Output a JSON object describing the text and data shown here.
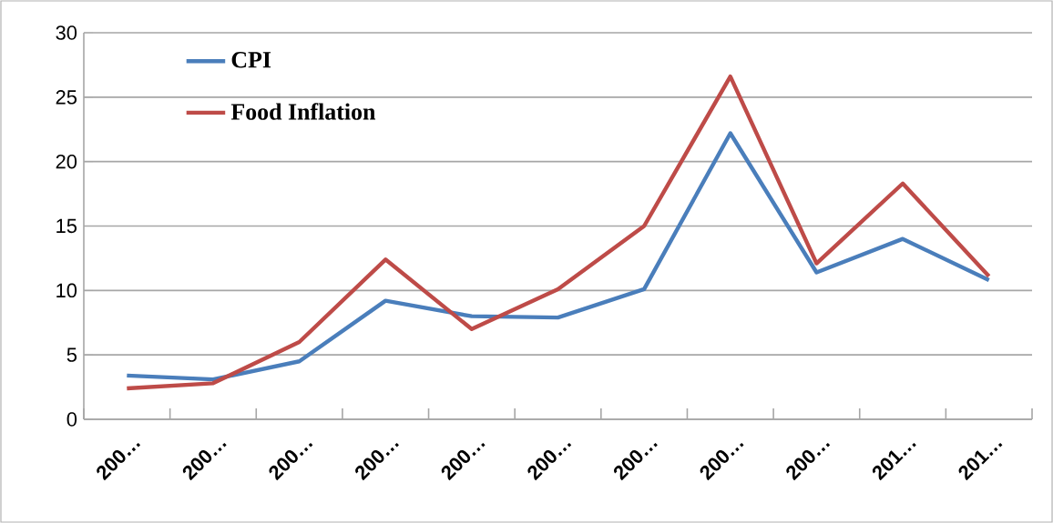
{
  "chart_data": {
    "type": "line",
    "categories": [
      "200…",
      "200…",
      "200…",
      "200…",
      "200…",
      "200…",
      "200…",
      "200…",
      "200…",
      "201…",
      "201…"
    ],
    "series": [
      {
        "name": "CPI",
        "color": "#4a7ebb",
        "values": [
          3.4,
          3.1,
          4.5,
          9.2,
          8.0,
          7.9,
          10.1,
          22.2,
          11.4,
          14.0,
          10.8
        ]
      },
      {
        "name": "Food Inflation",
        "color": "#be4b48",
        "values": [
          2.4,
          2.8,
          6.0,
          12.4,
          7.0,
          10.1,
          15.0,
          26.6,
          12.1,
          18.3,
          11.1
        ]
      }
    ],
    "ylim": [
      0,
      30
    ],
    "yticks": [
      0,
      5,
      10,
      15,
      20,
      25,
      30
    ],
    "grid": "y",
    "legend": "top left",
    "marker": "none",
    "line_style": "solid"
  }
}
